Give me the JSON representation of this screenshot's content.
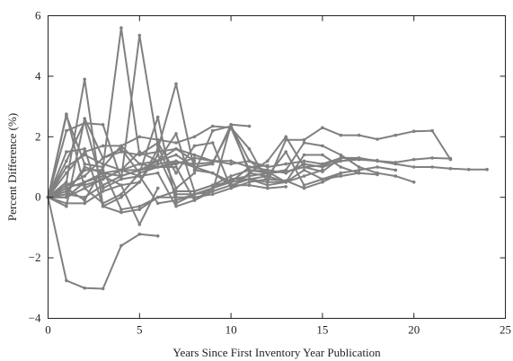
{
  "chart_data": {
    "type": "line",
    "title": "",
    "xlabel": "Years Since First Inventory Year Publication",
    "ylabel": "Percent Difference (%)",
    "xlim": [
      0,
      25
    ],
    "ylim": [
      -4,
      6
    ],
    "xticks": [
      0,
      5,
      10,
      15,
      20,
      25
    ],
    "yticks": [
      -4,
      -2,
      0,
      2,
      4,
      6
    ],
    "xtick_labels": [
      "0",
      "5",
      "10",
      "15",
      "20",
      "25"
    ],
    "ytick_labels": [
      "−4",
      "−2",
      "0",
      "2",
      "4",
      "6"
    ],
    "grid": false,
    "legend": "none",
    "line_color": "#808080",
    "axis_color": "#222222",
    "series": [
      {
        "x": [
          0,
          1,
          2,
          3,
          4,
          5,
          6
        ],
        "y": [
          0,
          -2.75,
          -3.0,
          -3.02,
          -1.6,
          -1.22,
          -1.28
        ]
      },
      {
        "x": [
          0,
          1,
          2,
          3,
          4,
          5,
          6,
          7,
          8,
          9,
          10,
          11,
          12,
          13,
          14,
          15,
          16,
          17,
          18,
          19,
          20,
          21,
          22,
          23,
          24
        ],
        "y": [
          0,
          0.3,
          0.5,
          0.8,
          0.7,
          0.9,
          1.0,
          1.1,
          1.3,
          1.2,
          1.1,
          1.2,
          1.0,
          1.1,
          1.2,
          1.1,
          1.3,
          1.3,
          1.2,
          1.1,
          1.0,
          1.0,
          0.95,
          0.92,
          0.92
        ]
      },
      {
        "x": [
          0,
          1,
          2,
          3,
          4,
          5,
          6,
          7,
          8,
          9,
          10,
          11,
          12,
          13,
          14,
          15,
          16,
          17,
          18,
          19,
          20,
          21,
          22
        ],
        "y": [
          0,
          0.8,
          1.5,
          1.7,
          1.7,
          2.0,
          1.9,
          1.8,
          2.0,
          2.35,
          2.3,
          1.6,
          0.5,
          1.9,
          1.9,
          2.3,
          2.05,
          2.05,
          1.92,
          2.05,
          2.18,
          2.2,
          1.25
        ]
      },
      {
        "x": [
          0,
          1,
          2,
          3,
          4,
          5,
          6,
          7,
          8,
          9,
          10,
          11,
          12,
          13,
          14,
          15,
          16,
          17,
          18,
          19,
          20,
          21,
          22
        ],
        "y": [
          0,
          2.7,
          1.1,
          1.0,
          5.6,
          1.4,
          1.5,
          1.6,
          1.4,
          1.2,
          1.2,
          1.0,
          0.9,
          0.8,
          1.1,
          1.0,
          1.2,
          1.25,
          1.2,
          1.15,
          1.25,
          1.3,
          1.28
        ]
      },
      {
        "x": [
          0,
          1,
          2,
          3,
          4,
          5,
          6,
          7,
          8,
          9,
          10,
          11,
          12,
          13,
          14,
          15,
          16,
          17,
          18,
          19,
          20
        ],
        "y": [
          0,
          1.2,
          2.5,
          0.3,
          0.6,
          5.35,
          1.7,
          0.3,
          0.8,
          2.2,
          2.35,
          1.2,
          0.8,
          0.9,
          1.8,
          1.7,
          1.4,
          1.0,
          0.8,
          0.7,
          0.5
        ]
      },
      {
        "x": [
          0,
          1,
          2,
          3,
          4,
          5,
          6,
          7,
          8,
          9,
          10,
          11,
          12,
          13,
          14,
          15,
          16,
          17,
          18,
          19
        ],
        "y": [
          0,
          0.5,
          3.9,
          -0.3,
          0.0,
          0.5,
          1.6,
          3.75,
          0.9,
          0.8,
          0.4,
          0.6,
          0.7,
          1.5,
          0.4,
          0.6,
          0.8,
          0.9,
          1.0,
          0.9
        ]
      },
      {
        "x": [
          0,
          1,
          2,
          3,
          4,
          5,
          6,
          7,
          8,
          9,
          10,
          11,
          12,
          13,
          14,
          15,
          16,
          17,
          18
        ],
        "y": [
          0,
          -0.3,
          2.6,
          1.3,
          1.6,
          0.8,
          2.65,
          -0.2,
          0.1,
          0.3,
          0.6,
          0.6,
          0.4,
          0.5,
          1.4,
          1.4,
          1.0,
          0.8,
          0.75
        ]
      },
      {
        "x": [
          0,
          1,
          2,
          3,
          4,
          5,
          6,
          7,
          8,
          9,
          10,
          11,
          12,
          13,
          14,
          15,
          16,
          17,
          18
        ],
        "y": [
          0,
          2.75,
          0.3,
          -0.2,
          0.1,
          0.8,
          1.0,
          1.0,
          -0.1,
          0.2,
          2.4,
          0.8,
          1.2,
          2.0,
          1.0,
          0.85,
          1.3,
          1.25,
          1.22
        ]
      },
      {
        "x": [
          0,
          1,
          2,
          3,
          4,
          5,
          6,
          7,
          8,
          9,
          10,
          11,
          12,
          13,
          14,
          15,
          16
        ],
        "y": [
          0,
          0.0,
          0.3,
          0.6,
          0.9,
          1.1,
          1.0,
          1.15,
          1.1,
          1.15,
          2.3,
          0.9,
          0.8,
          0.85,
          1.0,
          1.05,
          1.3
        ]
      },
      {
        "x": [
          0,
          1,
          2,
          3,
          4,
          5,
          6,
          7,
          8,
          9,
          10,
          11,
          12,
          13,
          14,
          15,
          16
        ],
        "y": [
          0,
          0.2,
          0.9,
          0.9,
          -0.4,
          -0.3,
          0.0,
          0.0,
          0.0,
          0.1,
          0.3,
          0.5,
          0.6,
          0.55,
          0.3,
          0.5,
          0.8
        ]
      },
      {
        "x": [
          0,
          1,
          2,
          3,
          4,
          5,
          6,
          7,
          8,
          9,
          10,
          11,
          12,
          13,
          14,
          15,
          16,
          17
        ],
        "y": [
          0,
          0.1,
          0.0,
          0.4,
          0.7,
          0.9,
          1.2,
          2.1,
          0.2,
          0.4,
          0.7,
          0.9,
          0.85,
          0.5,
          0.9,
          0.6,
          0.7,
          0.8
        ]
      },
      {
        "x": [
          0,
          1,
          2,
          3,
          4,
          5,
          6,
          7,
          8,
          9,
          10,
          11,
          12,
          13,
          14,
          15
        ],
        "y": [
          0,
          1.0,
          1.4,
          1.1,
          0.9,
          0.9,
          1.1,
          1.2,
          1.0,
          0.8,
          0.5,
          0.6,
          0.5,
          0.5,
          0.7,
          0.9
        ]
      },
      {
        "x": [
          0,
          1,
          2,
          3,
          4,
          5,
          6,
          7,
          8,
          9,
          10,
          11,
          12,
          13
        ],
        "y": [
          0,
          0.4,
          0.7,
          1.3,
          1.5,
          1.4,
          1.8,
          0.8,
          1.7,
          1.8,
          0.3,
          0.8,
          0.7,
          0.5
        ]
      },
      {
        "x": [
          0,
          1,
          2,
          3,
          4,
          5,
          6,
          7,
          8,
          9,
          10,
          11,
          12,
          13
        ],
        "y": [
          0,
          -0.2,
          -0.2,
          0.2,
          0.4,
          0.5,
          1.4,
          0.1,
          0.1,
          0.2,
          0.4,
          0.4,
          0.3,
          0.35
        ]
      },
      {
        "x": [
          0,
          1,
          2,
          3,
          4,
          5,
          6,
          7,
          8,
          9,
          10,
          11,
          12
        ],
        "y": [
          0,
          2.2,
          2.45,
          2.4,
          0.6,
          0.7,
          0.8,
          -0.3,
          -0.1,
          0.3,
          0.6,
          0.7,
          0.8
        ]
      },
      {
        "x": [
          0,
          1,
          2,
          3,
          4,
          5,
          6,
          7,
          8,
          9,
          10,
          11,
          12
        ],
        "y": [
          0,
          0.1,
          1.0,
          0.8,
          0.9,
          0.7,
          -0.2,
          -0.1,
          0.1,
          0.3,
          0.5,
          1.0,
          1.05
        ]
      },
      {
        "x": [
          0,
          1,
          2,
          3,
          4,
          5,
          6,
          7,
          8,
          9,
          10,
          11
        ],
        "y": [
          0,
          0.3,
          -0.1,
          1.0,
          1.7,
          1.1,
          1.2,
          1.4,
          1.0,
          1.1,
          2.4,
          2.35
        ]
      },
      {
        "x": [
          0,
          1,
          2,
          3,
          4,
          5,
          6,
          7,
          8,
          9,
          10
        ],
        "y": [
          0,
          1.5,
          1.6,
          -0.3,
          -0.5,
          -0.4,
          0.0,
          0.2,
          0.2,
          0.4,
          0.5
        ]
      },
      {
        "x": [
          0,
          1,
          2,
          3,
          4,
          5,
          6,
          7,
          8
        ],
        "y": [
          0,
          0.4,
          0.4,
          0.6,
          0.9,
          1.5,
          1.2,
          1.6,
          1.2
        ]
      },
      {
        "x": [
          0,
          1,
          2,
          3,
          4,
          5,
          6
        ],
        "y": [
          0,
          0.0,
          0.5,
          0.7,
          0.4,
          -0.9,
          0.3
        ]
      }
    ]
  }
}
